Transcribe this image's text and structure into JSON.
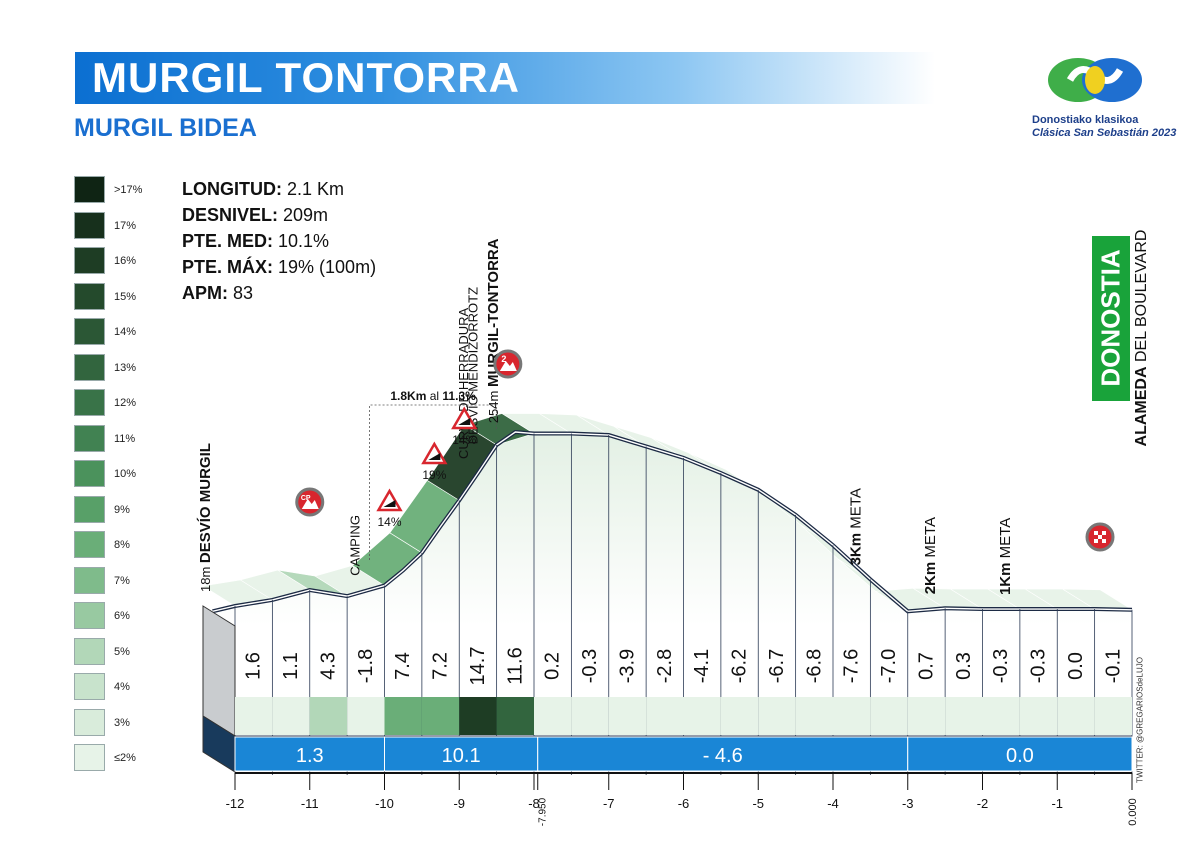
{
  "header": {
    "title": "MURGIL TONTORRA",
    "subtitle": "MURGIL BIDEA"
  },
  "logo": {
    "line1": "Donostiako klasikoa",
    "line2": "Clásica San Sebastián 2023"
  },
  "stats": [
    {
      "key": "LONGITUD:",
      "value": " 2.1 Km"
    },
    {
      "key": "DESNIVEL:",
      "value": " 209m"
    },
    {
      "key": "PTE. MED:",
      "value": " 10.1%"
    },
    {
      "key": "PTE. MÁX:",
      "value": " 19% (100m)"
    },
    {
      "key": "APM:",
      "value": " 83"
    }
  ],
  "legend": [
    {
      "label": ">17%",
      "color": "#0f2414"
    },
    {
      "label": "17%",
      "color": "#17301c"
    },
    {
      "label": "16%",
      "color": "#1e3d24"
    },
    {
      "label": "15%",
      "color": "#244a2c"
    },
    {
      "label": "14%",
      "color": "#2b5735"
    },
    {
      "label": "13%",
      "color": "#32653e"
    },
    {
      "label": "12%",
      "color": "#397348"
    },
    {
      "label": "11%",
      "color": "#418252"
    },
    {
      "label": "10%",
      "color": "#4b925c"
    },
    {
      "label": "9%",
      "color": "#58a068"
    },
    {
      "label": "8%",
      "color": "#6aae78"
    },
    {
      "label": "7%",
      "color": "#7fbb8b"
    },
    {
      "label": "6%",
      "color": "#98c9a1"
    },
    {
      "label": "5%",
      "color": "#b2d7b8"
    },
    {
      "label": "4%",
      "color": "#c8e3cc"
    },
    {
      "label": "3%",
      "color": "#d9ecdb"
    },
    {
      "label": "≤2%",
      "color": "#e7f3e8"
    }
  ],
  "finish": {
    "city": "DONOSTIA",
    "street_bold": "ALAMEDA",
    "street_rest": " DEL BOULEVARD"
  },
  "credit": "TWITTER: @GREGARIOSdeLUJO",
  "chart_data": {
    "type": "area",
    "xlabel": "",
    "ylabel": "",
    "xlim": [
      -12.3,
      0
    ],
    "ylim": [
      0,
      254
    ],
    "x_ticks": [
      "-12",
      "-11",
      "-10",
      "-9",
      "-8",
      "-7",
      "-6",
      "-5",
      "-4",
      "-3",
      "-2",
      "-1",
      "0.000"
    ],
    "x_tick_values": [
      -12,
      -11,
      -10,
      -9,
      -8,
      -7,
      -6,
      -5,
      -4,
      -3,
      -2,
      -1,
      0
    ],
    "extra_tick": {
      "x": -7.95,
      "label": "-7.950"
    },
    "profile": {
      "x": [
        -12.3,
        -12.0,
        -11.5,
        -11.0,
        -10.5,
        -10.0,
        -9.75,
        -9.5,
        -9.25,
        -9.0,
        -8.75,
        -8.5,
        -8.25,
        -8.0,
        -7.5,
        -7.0,
        -6.5,
        -6.0,
        -5.5,
        -5.0,
        -4.5,
        -4.0,
        -3.5,
        -3.0,
        -2.5,
        -2.0,
        -1.5,
        -1.0,
        -0.5,
        0.0
      ],
      "elevation": [
        18,
        25,
        33,
        46,
        38,
        52,
        72,
        95,
        130,
        164,
        200,
        237,
        254,
        252,
        252,
        250,
        235,
        220,
        200,
        178,
        145,
        105,
        60,
        18,
        22,
        21,
        21,
        21,
        21,
        20
      ]
    },
    "segment_gradients": {
      "from_km": [
        -12.0,
        -11.5,
        -11.0,
        -10.5,
        -10.0,
        -9.5,
        -9.0,
        -8.5,
        -8.0,
        -7.5,
        -7.0,
        -6.5,
        -6.0,
        -5.5,
        -5.0,
        -4.5,
        -4.0,
        -3.5,
        -3.0,
        -2.5,
        -2.0,
        -1.5,
        -1.0,
        -0.5
      ],
      "values": [
        "1.6",
        "1.1",
        "4.3",
        "-1.8",
        "7.4",
        "7.2",
        "14.7",
        "11.6",
        "0.2",
        "-0.3",
        "-3.9",
        "-2.8",
        "-4.1",
        "-6.2",
        "-6.7",
        "-6.8",
        "-7.6",
        "-7.0",
        "0.7",
        "0.3",
        "-0.3",
        "-0.3",
        "0.0",
        "-0.1"
      ]
    },
    "sector_gradients": [
      {
        "from": -12.0,
        "to": -10.0,
        "label": "1.3"
      },
      {
        "from": -10.0,
        "to": -7.95,
        "label": "10.1"
      },
      {
        "from": -7.95,
        "to": -3.0,
        "label": "- 4.6"
      },
      {
        "from": -3.0,
        "to": 0.0,
        "label": "0.0"
      }
    ],
    "annotations": [
      {
        "x": -12.2,
        "text_bold": "DESVÍO MURGIL",
        "text_pre": "18m "
      },
      {
        "x": -10.2,
        "text": "CAMPING"
      },
      {
        "x": -8.35,
        "text_bold": "MURGIL-TONTORRA",
        "text_pre": "254m "
      },
      {
        "x": -8.75,
        "text": "CURVA DE HERRADURA"
      },
      {
        "x": -8.62,
        "text": "DESVÍO MENDIZORROTZ"
      },
      {
        "x": -3.5,
        "text_bold": "3Km",
        "text_post": " META"
      },
      {
        "x": -2.5,
        "text_bold": "2Km",
        "text_post": " META"
      },
      {
        "x": -1.5,
        "text_bold": "1Km",
        "text_post": " META"
      }
    ],
    "signs": [
      {
        "x": -11.0,
        "type": "CP",
        "label": "CP"
      },
      {
        "x": -8.35,
        "type": "category",
        "label": "2"
      },
      {
        "x": 0.0,
        "type": "finish",
        "label": ""
      }
    ],
    "steep_signs": [
      {
        "x": -10.0,
        "label": "14%"
      },
      {
        "x": -9.4,
        "label": "19%"
      },
      {
        "x": -9.0,
        "label": "14%"
      }
    ],
    "bracket": {
      "from": -10.2,
      "to": -8.5,
      "text_bold": "1.8Km",
      "text_mid": " al ",
      "text_bold2": "11.3%"
    }
  }
}
